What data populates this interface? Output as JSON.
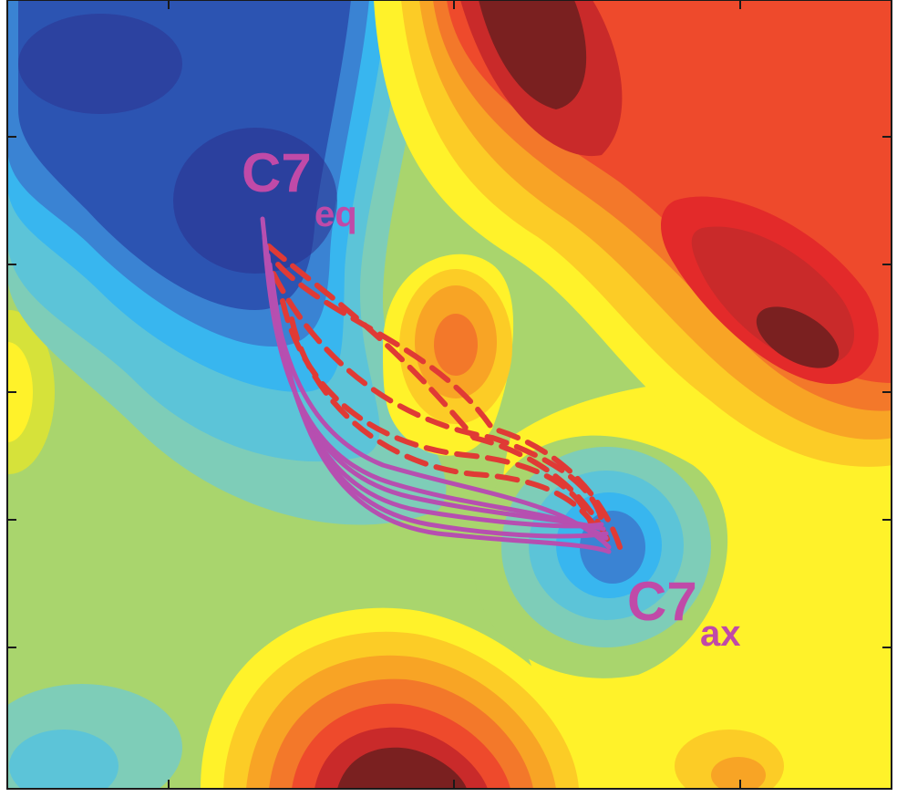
{
  "figure": {
    "states": [
      {
        "id": "eq",
        "main": "C7",
        "sub": "eq"
      },
      {
        "id": "ax",
        "main": "C7",
        "sub": "ax"
      }
    ]
  },
  "colors": {
    "frame": "#1a1a1a",
    "label": "#c04aa8",
    "solid_paths": "#b64fb0",
    "dashed_paths": "#e03a35",
    "palette": [
      "#2b2f8e",
      "#2c54b2",
      "#3a83d3",
      "#38b6ef",
      "#5cc4d8",
      "#7ecdb8",
      "#a9d56d",
      "#d6e23a",
      "#fff22a",
      "#fccc26",
      "#f8a425",
      "#f3782a",
      "#ee4a2c",
      "#e32a2a",
      "#c92a2a",
      "#7a2020"
    ]
  }
}
